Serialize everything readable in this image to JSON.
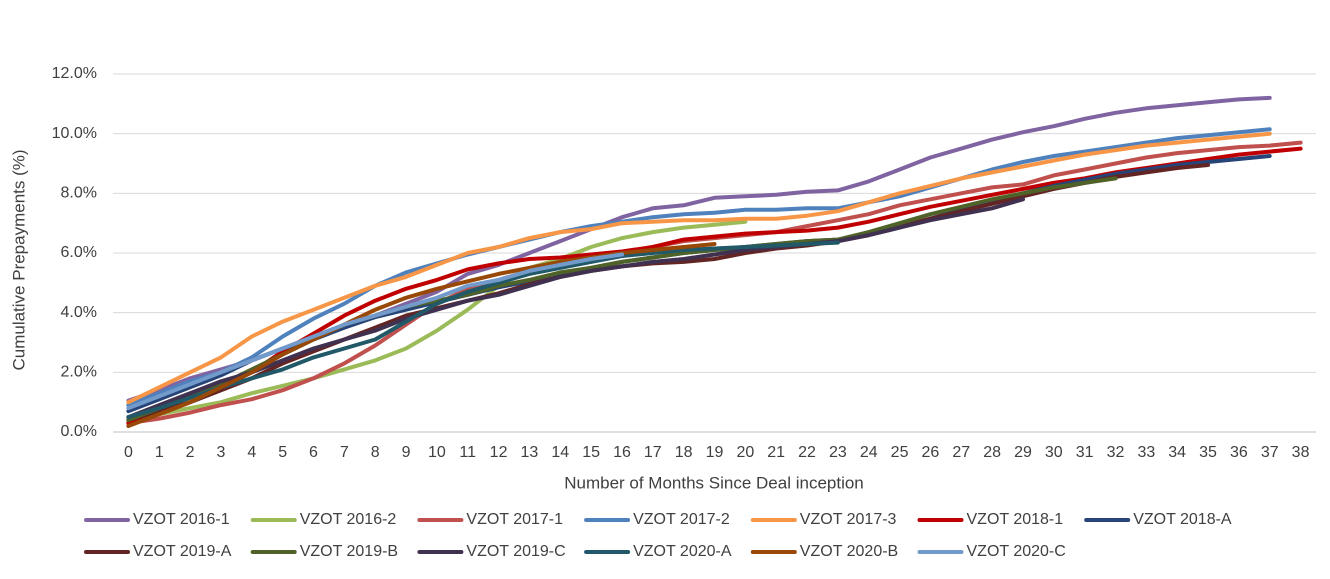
{
  "chart_data": {
    "type": "line",
    "x_label": "Number of Months Since Deal inception",
    "y_label": "Cumulative Prepayments (%)",
    "x": [
      0,
      1,
      2,
      3,
      4,
      5,
      6,
      7,
      8,
      9,
      10,
      11,
      12,
      13,
      14,
      15,
      16,
      17,
      18,
      19,
      20,
      21,
      22,
      23,
      24,
      25,
      26,
      27,
      28,
      29,
      30,
      31,
      32,
      33,
      34,
      35,
      36,
      37,
      38
    ],
    "ylim": [
      0,
      12
    ],
    "yticks": [
      {
        "value": 0,
        "label": "0.0%"
      },
      {
        "value": 2,
        "label": "2.0%"
      },
      {
        "value": 4,
        "label": "4.0%"
      },
      {
        "value": 6,
        "label": "6.0%"
      },
      {
        "value": 8,
        "label": "8.0%"
      },
      {
        "value": 10,
        "label": "10.0%"
      },
      {
        "value": 12,
        "label": "12.0%"
      }
    ],
    "grid": true,
    "legend": "bottom",
    "series": [
      {
        "name": "VZOT 2016-1",
        "color": "#8064a2",
        "values": [
          1.05,
          1.4,
          1.8,
          2.1,
          2.4,
          2.8,
          3.2,
          3.5,
          3.9,
          4.3,
          4.7,
          5.3,
          5.6,
          6.0,
          6.4,
          6.8,
          7.2,
          7.5,
          7.6,
          7.85,
          7.9,
          7.95,
          8.05,
          8.1,
          8.4,
          8.8,
          9.2,
          9.5,
          9.8,
          10.05,
          10.25,
          10.5,
          10.7,
          10.85,
          10.95,
          11.05,
          11.15,
          11.2,
          null
        ]
      },
      {
        "name": "VZOT 2016-2",
        "color": "#9bbb59",
        "values": [
          0.3,
          0.6,
          0.8,
          1.0,
          1.3,
          1.55,
          1.8,
          2.1,
          2.4,
          2.8,
          3.4,
          4.1,
          4.9,
          5.5,
          5.8,
          6.2,
          6.5,
          6.7,
          6.85,
          6.95,
          7.05,
          null,
          null,
          null,
          null,
          null,
          null,
          null,
          null,
          null,
          null,
          null,
          null,
          null,
          null,
          null,
          null,
          null,
          null
        ]
      },
      {
        "name": "VZOT 2017-1",
        "color": "#c0504d",
        "values": [
          0.3,
          0.45,
          0.65,
          0.9,
          1.1,
          1.4,
          1.8,
          2.3,
          2.9,
          3.6,
          4.3,
          4.8,
          5.1,
          5.4,
          5.6,
          5.8,
          6.0,
          6.2,
          6.4,
          6.5,
          6.6,
          6.7,
          6.9,
          7.1,
          7.3,
          7.6,
          7.8,
          8.0,
          8.2,
          8.3,
          8.6,
          8.8,
          9.0,
          9.2,
          9.35,
          9.45,
          9.55,
          9.6,
          9.7
        ]
      },
      {
        "name": "VZOT 2017-2",
        "color": "#4f81bd",
        "values": [
          0.9,
          1.3,
          1.7,
          2.0,
          2.5,
          3.2,
          3.8,
          4.3,
          4.9,
          5.35,
          5.65,
          5.95,
          6.2,
          6.45,
          6.7,
          6.9,
          7.05,
          7.2,
          7.3,
          7.35,
          7.45,
          7.45,
          7.5,
          7.5,
          7.7,
          7.9,
          8.2,
          8.5,
          8.8,
          9.05,
          9.25,
          9.4,
          9.55,
          9.7,
          9.85,
          9.95,
          10.05,
          10.15,
          null
        ]
      },
      {
        "name": "VZOT 2017-3",
        "color": "#f79646",
        "values": [
          1.0,
          1.5,
          2.0,
          2.5,
          3.2,
          3.7,
          4.1,
          4.5,
          4.9,
          5.2,
          5.6,
          6.0,
          6.2,
          6.5,
          6.7,
          6.8,
          7.0,
          7.05,
          7.1,
          7.1,
          7.15,
          7.15,
          7.25,
          7.4,
          7.7,
          8.0,
          8.25,
          8.5,
          8.7,
          8.9,
          9.1,
          9.3,
          9.45,
          9.6,
          9.7,
          9.8,
          9.9,
          10.0,
          null
        ]
      },
      {
        "name": "VZOT 2018-1",
        "color": "#c00000",
        "values": [
          0.3,
          0.6,
          1.0,
          1.5,
          2.0,
          2.7,
          3.3,
          3.9,
          4.4,
          4.8,
          5.1,
          5.45,
          5.65,
          5.8,
          5.85,
          5.95,
          6.05,
          6.2,
          6.45,
          6.55,
          6.65,
          6.7,
          6.75,
          6.85,
          7.05,
          7.3,
          7.55,
          7.75,
          7.95,
          8.15,
          8.35,
          8.5,
          8.7,
          8.85,
          9.0,
          9.15,
          9.3,
          9.4,
          9.5
        ]
      },
      {
        "name": "VZOT 2018-A",
        "color": "#264478",
        "values": [
          0.7,
          1.1,
          1.5,
          1.9,
          2.4,
          2.8,
          3.1,
          3.5,
          3.85,
          4.1,
          4.35,
          4.6,
          4.85,
          5.05,
          5.3,
          5.5,
          5.7,
          5.85,
          6.0,
          6.1,
          6.2,
          6.3,
          6.4,
          6.45,
          6.6,
          6.85,
          7.15,
          7.45,
          7.75,
          8.0,
          8.25,
          8.45,
          8.65,
          8.8,
          8.95,
          9.05,
          9.15,
          9.25,
          null
        ]
      },
      {
        "name": "VZOT 2019-A",
        "color": "#632523",
        "values": [
          0.4,
          0.7,
          1.0,
          1.4,
          1.8,
          2.3,
          2.7,
          3.1,
          3.5,
          3.9,
          4.15,
          4.4,
          4.65,
          4.95,
          5.2,
          5.4,
          5.55,
          5.65,
          5.7,
          5.8,
          6.0,
          6.15,
          6.25,
          6.4,
          6.6,
          6.9,
          7.15,
          7.4,
          7.65,
          7.9,
          8.15,
          8.35,
          8.55,
          8.7,
          8.85,
          8.95,
          null,
          null,
          null
        ]
      },
      {
        "name": "VZOT 2019-B",
        "color": "#4f6228",
        "values": [
          0.4,
          0.8,
          1.2,
          1.6,
          2.1,
          2.6,
          3.1,
          3.6,
          3.9,
          4.2,
          4.4,
          4.6,
          4.9,
          5.1,
          5.35,
          5.5,
          5.7,
          5.85,
          6.0,
          6.1,
          6.2,
          6.3,
          6.4,
          6.45,
          6.7,
          7.0,
          7.3,
          7.55,
          7.8,
          8.0,
          8.2,
          8.35,
          8.5,
          null,
          null,
          null,
          null,
          null,
          null
        ]
      },
      {
        "name": "VZOT 2019-C",
        "color": "#403151",
        "values": [
          0.5,
          0.9,
          1.3,
          1.7,
          2.0,
          2.4,
          2.8,
          3.1,
          3.4,
          3.8,
          4.1,
          4.4,
          4.6,
          4.9,
          5.2,
          5.4,
          5.55,
          5.7,
          5.8,
          5.95,
          6.1,
          6.2,
          6.3,
          6.4,
          6.6,
          6.85,
          7.1,
          7.3,
          7.5,
          7.8,
          null,
          null,
          null,
          null,
          null,
          null,
          null,
          null,
          null
        ]
      },
      {
        "name": "VZOT 2020-A",
        "color": "#215968",
        "values": [
          0.5,
          0.8,
          1.15,
          1.5,
          1.8,
          2.1,
          2.5,
          2.8,
          3.1,
          3.7,
          4.3,
          4.7,
          5.0,
          5.3,
          5.5,
          5.7,
          5.9,
          6.0,
          6.1,
          6.15,
          6.2,
          6.25,
          6.3,
          6.35,
          null,
          null,
          null,
          null,
          null,
          null,
          null,
          null,
          null,
          null,
          null,
          null,
          null,
          null,
          null
        ]
      },
      {
        "name": "VZOT 2020-B",
        "color": "#984807",
        "values": [
          0.2,
          0.6,
          1.0,
          1.5,
          2.0,
          2.6,
          3.1,
          3.6,
          4.1,
          4.5,
          4.8,
          5.05,
          5.3,
          5.5,
          5.7,
          5.85,
          6.0,
          6.1,
          6.2,
          6.3,
          null,
          null,
          null,
          null,
          null,
          null,
          null,
          null,
          null,
          null,
          null,
          null,
          null,
          null,
          null,
          null,
          null,
          null,
          null
        ]
      },
      {
        "name": "VZOT 2020-C",
        "color": "#729aca",
        "values": [
          0.8,
          1.2,
          1.6,
          2.0,
          2.4,
          2.8,
          3.2,
          3.6,
          3.9,
          4.2,
          4.5,
          4.9,
          5.1,
          5.4,
          5.6,
          5.8,
          5.95,
          null,
          null,
          null,
          null,
          null,
          null,
          null,
          null,
          null,
          null,
          null,
          null,
          null,
          null,
          null,
          null,
          null,
          null,
          null,
          null,
          null,
          null
        ]
      }
    ]
  }
}
